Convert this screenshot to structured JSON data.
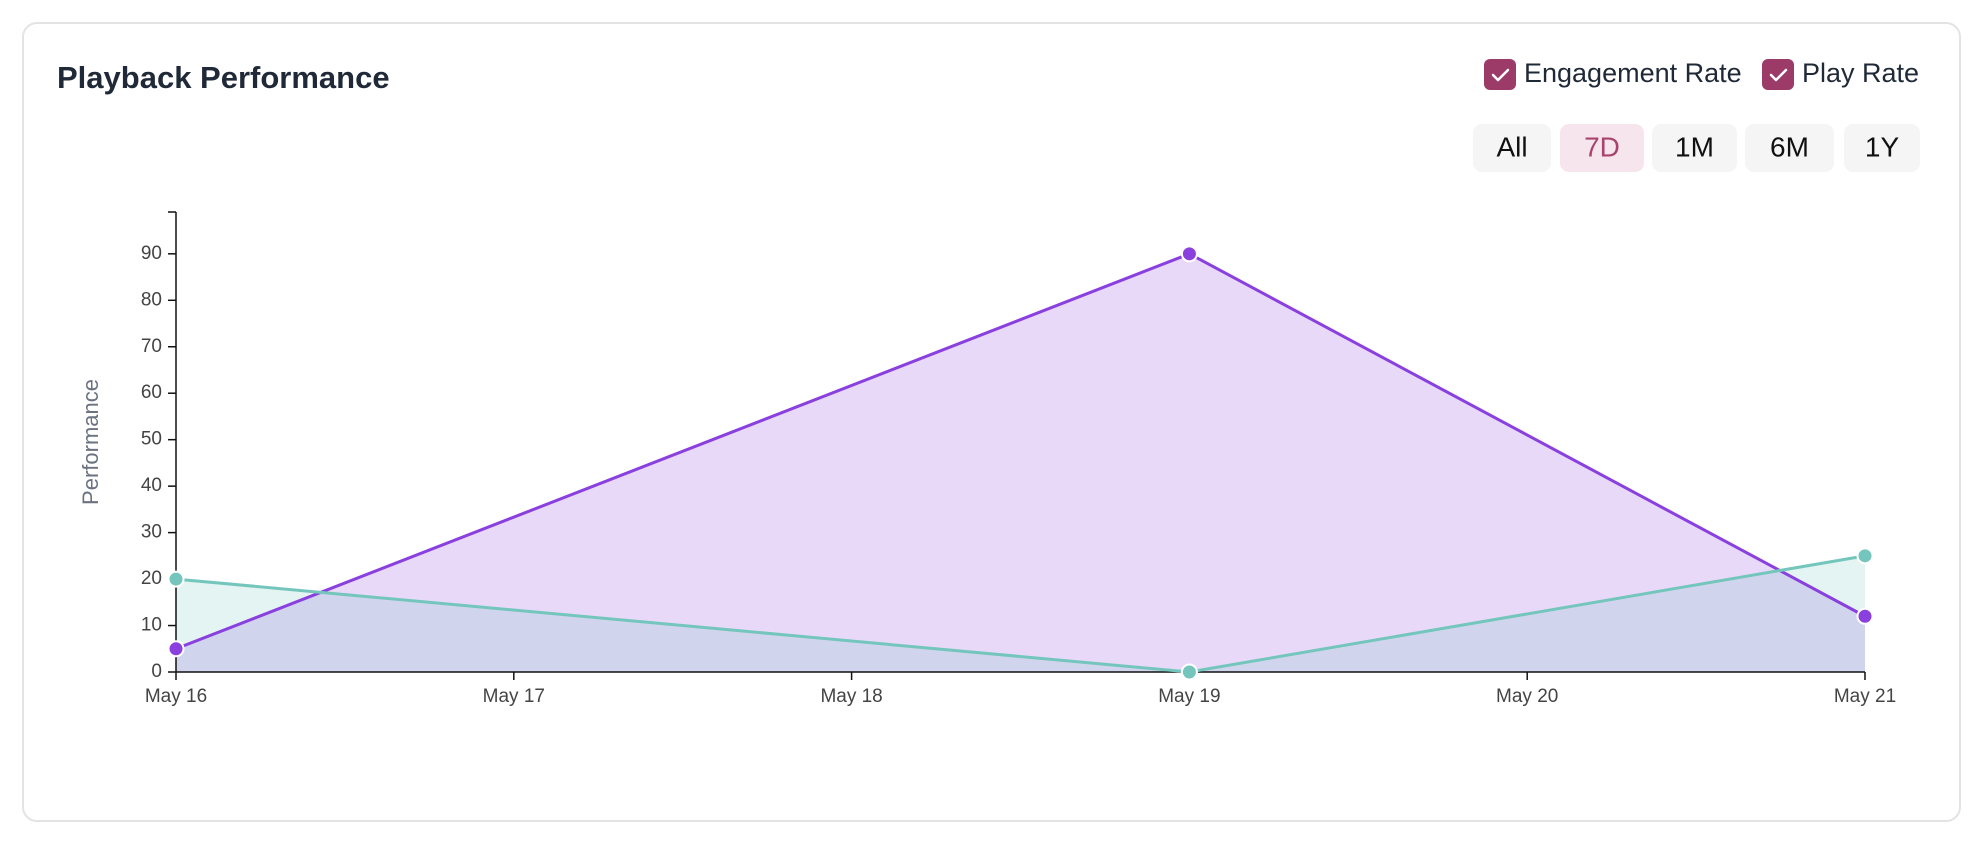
{
  "chart_data": {
    "type": "line",
    "title": "Playback Performance",
    "ylabel": "Performance",
    "x": [
      "May 16",
      "May 19",
      "May 21"
    ],
    "xlim": [
      "May 16",
      "May 21"
    ],
    "xticks": [
      "May 16",
      "May 17",
      "May 18",
      "May 19",
      "May 20",
      "May 21"
    ],
    "ylim": [
      0,
      99
    ],
    "yticks": [
      0,
      10,
      20,
      30,
      40,
      50,
      60,
      70,
      80,
      90
    ],
    "area": true,
    "legend_color": "#9c3b68",
    "series": [
      {
        "name": "Engagement Rate",
        "color": "#8a3fdf",
        "values": [
          5,
          90,
          12
        ]
      },
      {
        "name": "Play Rate",
        "color": "#74c6bd",
        "values": [
          20,
          0,
          25
        ]
      }
    ],
    "ranges": [
      {
        "label": "All",
        "active": false
      },
      {
        "label": "7D",
        "active": true
      },
      {
        "label": "1M",
        "active": false
      },
      {
        "label": "6M",
        "active": false
      },
      {
        "label": "1Y",
        "active": false
      }
    ]
  }
}
